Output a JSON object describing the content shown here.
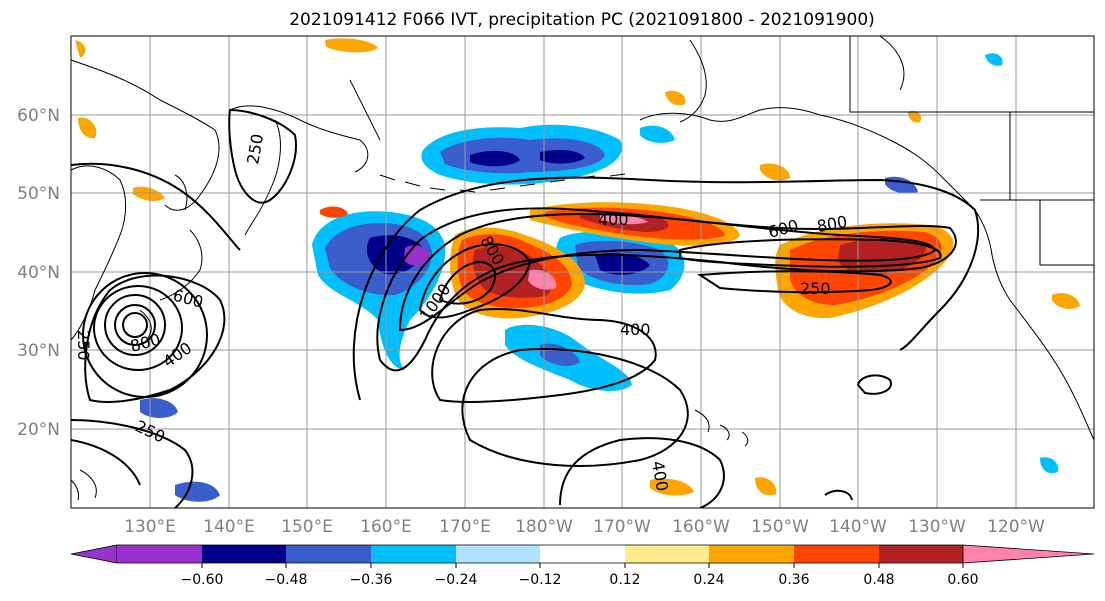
{
  "title": "2021091412 F066 IVT, precipitation PC (2021091800 - 2021091900)",
  "map": {
    "lat_labels": [
      "60°N",
      "50°N",
      "40°N",
      "30°N",
      "20°N"
    ],
    "lon_labels": [
      "130°E",
      "140°E",
      "150°E",
      "160°E",
      "170°E",
      "180°W",
      "170°W",
      "160°W",
      "150°W",
      "140°W",
      "130°W",
      "120°W"
    ],
    "contour_labels": [
      "250",
      "400",
      "600",
      "800",
      "1000",
      "250",
      "600",
      "800",
      "400",
      "800",
      "400",
      "250",
      "400",
      "250"
    ],
    "gridline_color": "#9a9a9a"
  },
  "colorbar": {
    "colors": [
      "#9932CC",
      "#00008B",
      "#3A5FCD",
      "#00BFFF",
      "#B0E2FF",
      "#FFFFFF",
      "#FFEC8B",
      "#FFA500",
      "#FF4500",
      "#B22222",
      "#FF82AB"
    ],
    "tick_labels": [
      "−0.60",
      "−0.48",
      "−0.36",
      "−0.24",
      "−0.12",
      "0.12",
      "0.24",
      "0.36",
      "0.48",
      "0.60"
    ]
  }
}
